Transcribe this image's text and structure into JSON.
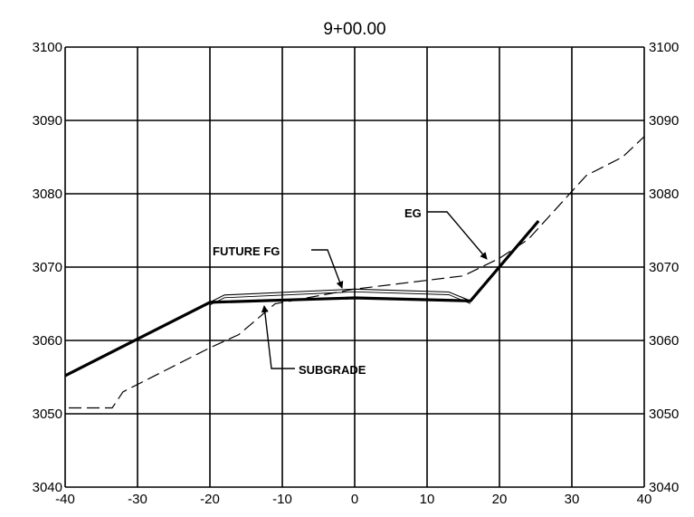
{
  "chart_data": {
    "type": "line",
    "title": "9+00.00",
    "xlim": [
      -40,
      40
    ],
    "ylim": [
      3040,
      3100
    ],
    "x_ticks": [
      "-40",
      "-30",
      "-20",
      "-10",
      "0",
      "10",
      "20",
      "30",
      "40"
    ],
    "y_ticks": [
      "3100",
      "3090",
      "3080",
      "3070",
      "3060",
      "3050",
      "3040"
    ],
    "grid": true,
    "series": [
      {
        "name": "SUBGRADE",
        "style": "solid-thick",
        "color": "#000000",
        "x": [
          -40,
          -20,
          0,
          16,
          25.4
        ],
        "y": [
          3055.2,
          3065.2,
          3065.8,
          3065.4,
          3076.3
        ]
      },
      {
        "name": "FUTURE FG",
        "style": "double-thin",
        "color": "#000000",
        "x": [
          -20,
          -18,
          0,
          13,
          16
        ],
        "y": [
          3065.2,
          3066.2,
          3067.0,
          3066.6,
          3065.4
        ]
      },
      {
        "name": "EG",
        "style": "dashed",
        "color": "#000000",
        "x": [
          -39.5,
          -33.5,
          -32,
          -20,
          -16,
          -11,
          0,
          15,
          20,
          24,
          32,
          37,
          40
        ],
        "y": [
          3050.8,
          3050.8,
          3053,
          3059,
          3060.8,
          3065,
          3067,
          3068.8,
          3071.2,
          3073.8,
          3082.5,
          3085,
          3087.8
        ]
      }
    ],
    "annotations": [
      {
        "text": "FUTURE FG"
      },
      {
        "text": "EG"
      },
      {
        "text": "SUBGRADE"
      }
    ]
  }
}
